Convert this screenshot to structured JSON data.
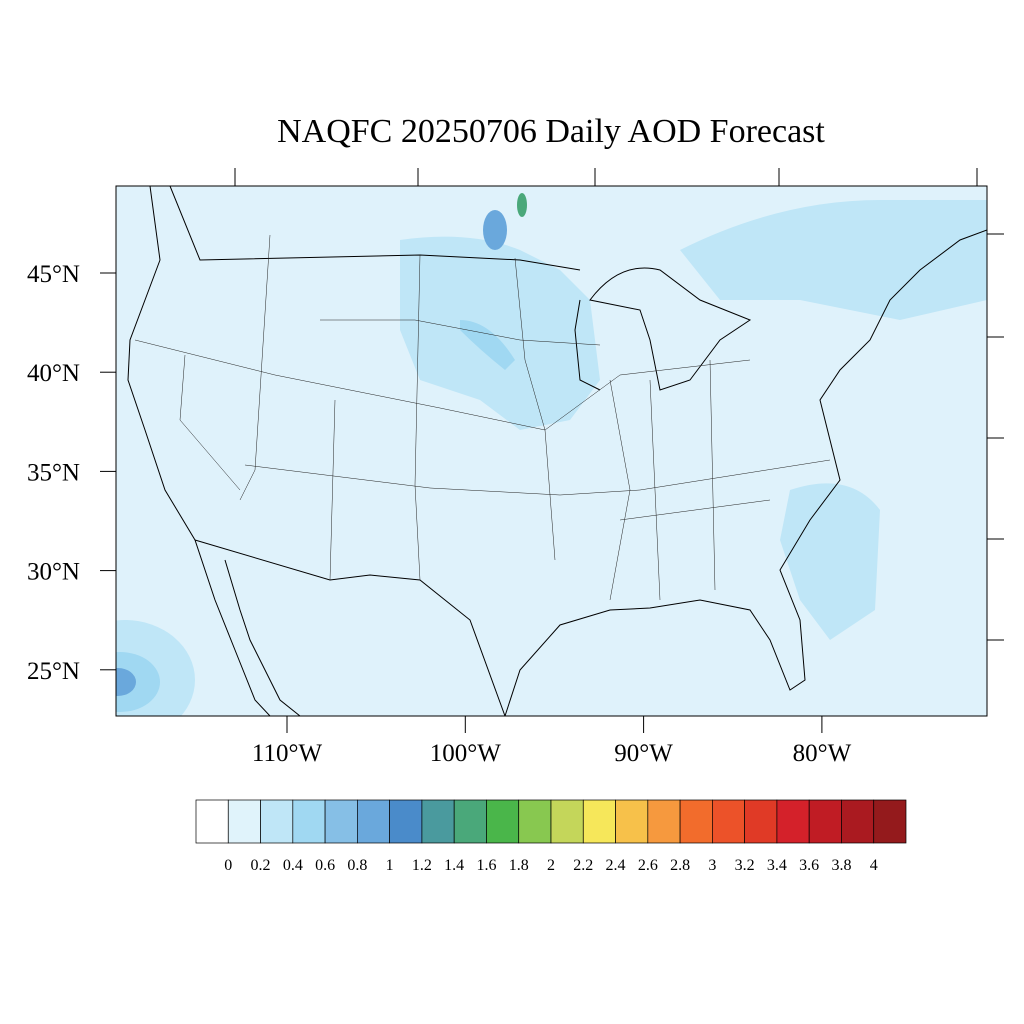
{
  "title": "NAQFC 20250706 Daily AOD Forecast",
  "lat_labels": [
    "45°N",
    "40°N",
    "35°N",
    "30°N",
    "25°N"
  ],
  "lon_labels": [
    "110°W",
    "100°W",
    "90°W",
    "80°W"
  ],
  "colorbar": {
    "levels": [
      0,
      0.2,
      0.4,
      0.6,
      0.8,
      1,
      1.2,
      1.4,
      1.6,
      1.8,
      2,
      2.2,
      2.4,
      2.6,
      2.8,
      3,
      3.2,
      3.4,
      3.6,
      3.8,
      4
    ],
    "colors": [
      "#ffffff",
      "#e0f3fb",
      "#bfe6f7",
      "#a0d8f2",
      "#86bfe6",
      "#6aa8dc",
      "#4a8bca",
      "#4a9a9e",
      "#4aa87a",
      "#4ab64a",
      "#88c850",
      "#c4d65a",
      "#f6e75a",
      "#f7c14a",
      "#f6993e",
      "#f26c2c",
      "#ec5229",
      "#e03a26",
      "#d4212a",
      "#c01c24",
      "#aa1a20",
      "#941a1c"
    ]
  }
}
